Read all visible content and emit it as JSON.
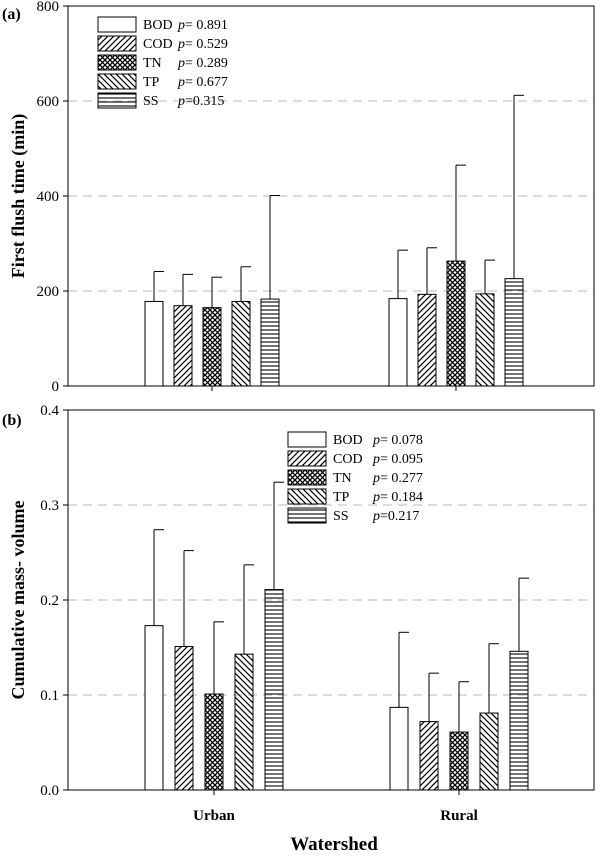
{
  "xlabel": "Watershed",
  "chart_data": [
    {
      "type": "bar",
      "panel": "(a)",
      "title": "",
      "xlabel": "Watershed",
      "ylabel": "First flush time (min)",
      "ylim": [
        0,
        800
      ],
      "yticks": [
        "0",
        "200",
        "400",
        "600",
        "800"
      ],
      "grid": "dashed horizontal",
      "legend_position": "top-left",
      "categories": [
        "Urban",
        "Rural"
      ],
      "series": [
        {
          "name": "BOD",
          "pattern": "empty",
          "p_label": "p",
          "p_value": "= 0.891",
          "values": [
            178,
            184
          ],
          "errors": [
            63,
            102
          ]
        },
        {
          "name": "COD",
          "pattern": "diagonal-up",
          "p_label": "p",
          "p_value": "= 0.529",
          "values": [
            169,
            193
          ],
          "errors": [
            66,
            98
          ]
        },
        {
          "name": "TN",
          "pattern": "crosshatch",
          "p_label": "p",
          "p_value": "= 0.289",
          "values": [
            165,
            263
          ],
          "errors": [
            64,
            202
          ]
        },
        {
          "name": "TP",
          "pattern": "diagonal-down",
          "p_label": "p",
          "p_value": "= 0.677",
          "values": [
            178,
            194
          ],
          "errors": [
            73,
            71
          ]
        },
        {
          "name": "SS",
          "pattern": "horizontal",
          "p_label": "p",
          "p_value": "=0.315",
          "values": [
            183,
            226
          ],
          "errors": [
            218,
            386
          ]
        }
      ]
    },
    {
      "type": "bar",
      "panel": "(b)",
      "title": "",
      "xlabel": "Watershed",
      "ylabel": "Cumulative mass- volume",
      "ylim": [
        0,
        0.4
      ],
      "yticks": [
        "0.0",
        "0.1",
        "0.2",
        "0.3",
        "0.4"
      ],
      "grid": "dashed horizontal",
      "legend_position": "top-right",
      "categories": [
        "Urban",
        "Rural"
      ],
      "series": [
        {
          "name": "BOD",
          "pattern": "empty",
          "p_label": "p",
          "p_value": "= 0.078",
          "values": [
            0.173,
            0.087
          ],
          "errors": [
            0.101,
            0.079
          ]
        },
        {
          "name": "COD",
          "pattern": "diagonal-up",
          "p_label": "p",
          "p_value": "= 0.095",
          "values": [
            0.151,
            0.072
          ],
          "errors": [
            0.101,
            0.051
          ]
        },
        {
          "name": "TN",
          "pattern": "crosshatch",
          "p_label": "p",
          "p_value": "= 0.277",
          "values": [
            0.101,
            0.061
          ],
          "errors": [
            0.076,
            0.053
          ]
        },
        {
          "name": "TP",
          "pattern": "diagonal-down",
          "p_label": "p",
          "p_value": "= 0.184",
          "values": [
            0.143,
            0.081
          ],
          "errors": [
            0.094,
            0.073
          ]
        },
        {
          "name": "SS",
          "pattern": "horizontal",
          "p_label": "p",
          "p_value": "=0.217",
          "values": [
            0.211,
            0.146
          ],
          "errors": [
            0.113,
            0.077
          ]
        }
      ]
    }
  ]
}
